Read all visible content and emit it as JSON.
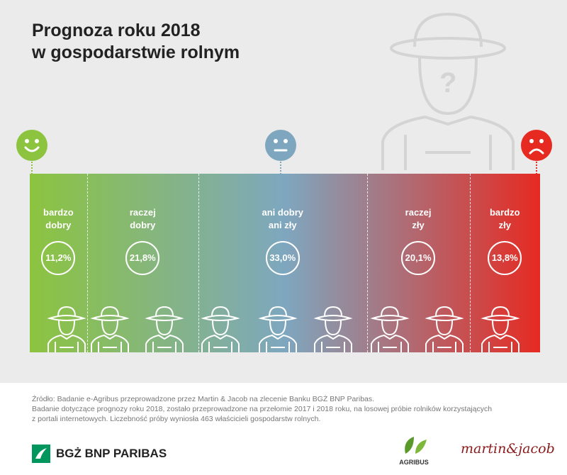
{
  "chart_data": {
    "type": "bar",
    "orientation": "horizontal",
    "stacked": true,
    "title": "Prognoza roku 2018\nw gospodarstwie rolnym",
    "categories": [
      "bardzo\ndobry",
      "raczej\ndobry",
      "ani dobry\nani zły",
      "raczej\nzły",
      "bardzo\nzły"
    ],
    "values": [
      11.2,
      21.8,
      33.0,
      20.1,
      13.8
    ],
    "value_labels": [
      "11,2%",
      "21,8%",
      "33,0%",
      "20,1%",
      "13,8%"
    ],
    "gradient": [
      "#8cc43f",
      "#7ea7bf",
      "#e62a22"
    ]
  },
  "footer": {
    "source": [
      "Źródło: Badanie e-Agribus przeprowadzone przez Martin & Jacob na zlecenie Banku BGŻ BNP Paribas.",
      "Badanie dotyczące prognozy roku 2018, zostało przeprowadzone na przełomie 2017 i 2018 roku, na losowej próbie rolników korzystających",
      "z portali internetowych.  Liczebność próby wyniosła 463 właścicieli gospodarstw rolnych."
    ],
    "logos": [
      "BGŻ BNP PARIBAS",
      "AGRIBUS",
      "martin&jacob"
    ]
  }
}
